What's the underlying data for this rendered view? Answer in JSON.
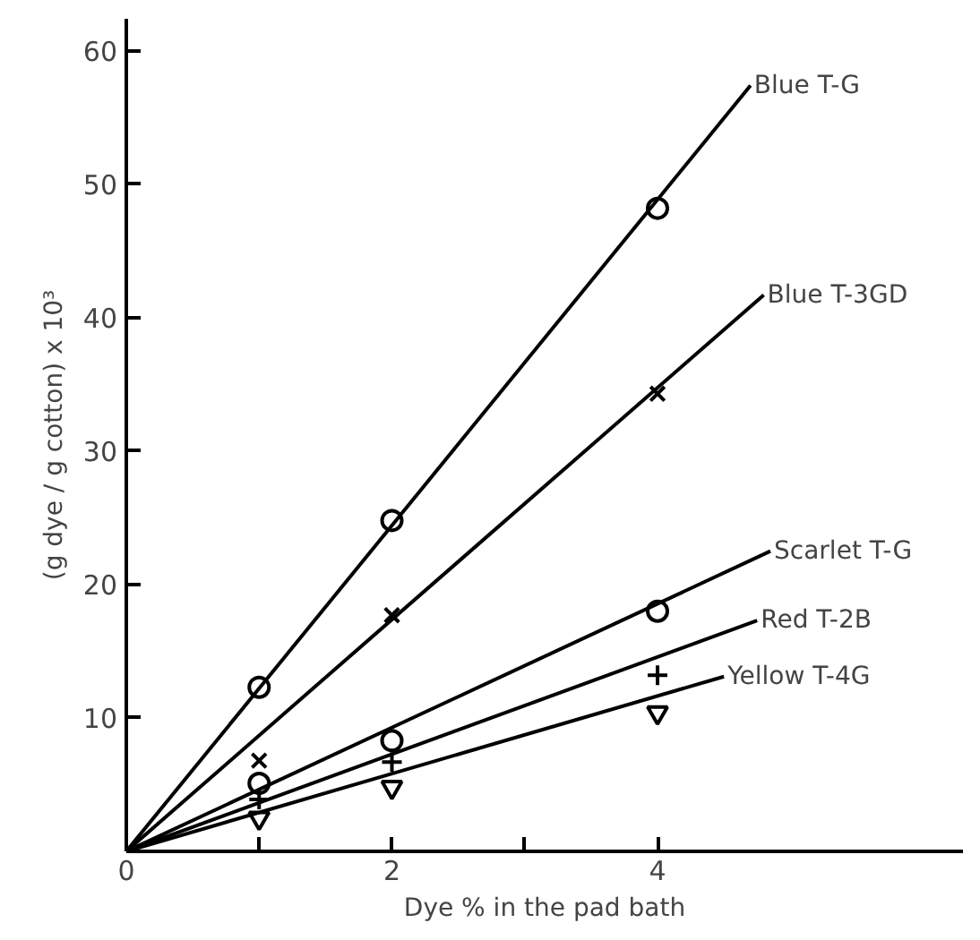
{
  "chart_data": {
    "type": "line",
    "xlabel": "Dye % in the pad bath",
    "ylabel": "(g dye / g cotton) x 10³",
    "xlim": [
      0,
      6.3
    ],
    "ylim": [
      0,
      62.4
    ],
    "xticks": [
      0,
      {
        "value": 1,
        "label": null
      },
      2,
      {
        "value": 3,
        "label": null
      },
      4
    ],
    "yticks": [
      {
        "value": 0,
        "label": null
      },
      10,
      20,
      30,
      40,
      50,
      60
    ],
    "grid": false,
    "series": [
      {
        "type": "scatter",
        "marker": "circle",
        "color": "#000000",
        "x": [
          1,
          2,
          4
        ],
        "values": [
          12.3,
          24.8,
          48.2
        ]
      },
      {
        "type": "scatter",
        "marker": "x",
        "color": "#000000",
        "x": [
          1,
          2,
          4
        ],
        "values": [
          6.8,
          17.7,
          34.3
        ]
      },
      {
        "type": "scatter",
        "marker": "circle",
        "color": "#000000",
        "x": [
          1,
          2,
          4
        ],
        "values": [
          5.1,
          8.3,
          18.0
        ]
      },
      {
        "type": "scatter",
        "marker": "cross",
        "color": "#000000",
        "x": [
          1,
          2,
          4
        ],
        "values": [
          3.9,
          6.7,
          13.2
        ]
      },
      {
        "type": "scatter",
        "marker": "triangle",
        "color": "#000000",
        "x": [
          1,
          2,
          4
        ],
        "values": [
          2.5,
          4.8,
          10.4
        ]
      },
      {
        "name": "Blue T-G",
        "color": "#000000",
        "x": [
          0,
          4.7
        ],
        "values": [
          0,
          57.4
        ]
      },
      {
        "name": "Blue T-3GD",
        "color": "#000000",
        "x": [
          0,
          4.8
        ],
        "values": [
          0,
          41.7
        ]
      },
      {
        "name": "Scarlet T-G",
        "color": "#000000",
        "x": [
          0,
          4.85
        ],
        "values": [
          0,
          22.5
        ]
      },
      {
        "name": "Red T-2B",
        "color": "#000000",
        "x": [
          0,
          4.75
        ],
        "values": [
          0,
          17.3
        ]
      },
      {
        "name": "Yellow T-4G",
        "color": "#000000",
        "x": [
          0,
          4.5
        ],
        "values": [
          0,
          13.1
        ]
      }
    ]
  }
}
